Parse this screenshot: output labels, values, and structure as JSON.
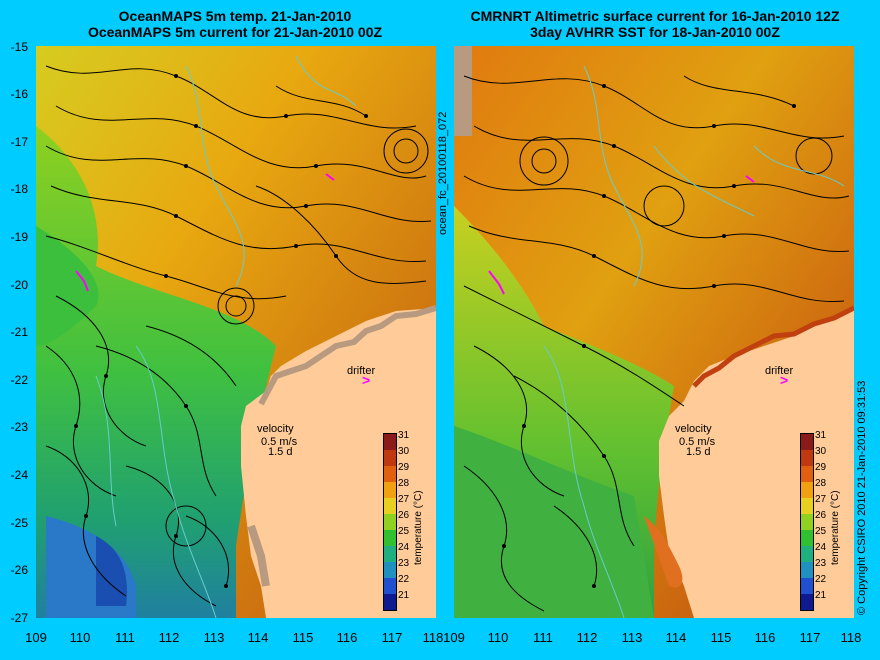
{
  "left": {
    "title_line1": "OceanMAPS 5m temp. 21-Jan-2010",
    "title_line2": "OceanMAPS 5m current for 21-Jan-2010 00Z"
  },
  "right": {
    "title_line1": "CMRNRT Altimetric surface current for 16-Jan-2010 12Z",
    "title_line2": "3day AVHRR SST for 18-Jan-2010 00Z"
  },
  "y_ticks": [
    "-15",
    "-16",
    "-17",
    "-18",
    "-19",
    "-20",
    "-21",
    "-22",
    "-23",
    "-24",
    "-25",
    "-26",
    "-27"
  ],
  "x_ticks": [
    "109",
    "110",
    "111",
    "112",
    "113",
    "114",
    "115",
    "116",
    "117",
    "118"
  ],
  "labels": {
    "velocity": "velocity",
    "speed": "0.5 m/s",
    "duration": "1.5 d",
    "drifter": "drifter",
    "drifter_glyph": ">",
    "colorbar_title": "temperature (°C)",
    "run_id": "ocean_fc_20100118_072",
    "copyright": "© Copyright CSIRO 2010  21-Jan-2010 09:31:53"
  },
  "colorbar_ticks": [
    "31",
    "30",
    "29",
    "28",
    "27",
    "26",
    "25",
    "24",
    "23",
    "22",
    "21"
  ],
  "colors": {
    "background": "#00ccff",
    "land": "#ffcc99",
    "drifter": "#ff00ff",
    "coast_contour": "#66cccc"
  }
}
